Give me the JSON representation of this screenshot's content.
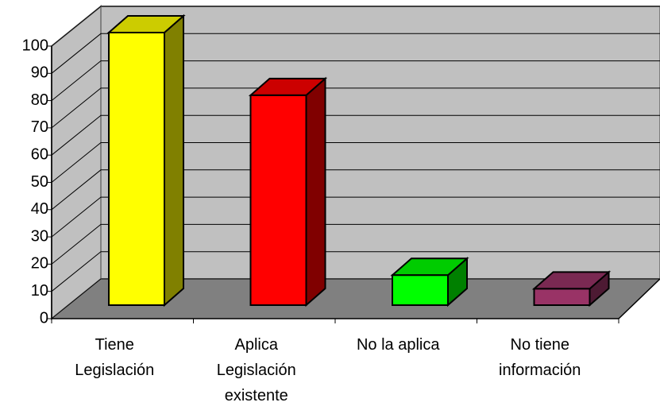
{
  "chart_data": {
    "type": "bar3d",
    "categories": [
      "Tiene Legislación",
      "Aplica Legislación existente",
      "No la aplica",
      "No tiene información"
    ],
    "values": [
      100,
      77,
      11,
      6
    ],
    "colors": [
      "#ffff00",
      "#ff0000",
      "#00ff00",
      "#993366"
    ],
    "ylim": [
      0,
      100
    ],
    "yticks": [
      0,
      10,
      20,
      30,
      40,
      50,
      60,
      70,
      80,
      90,
      100
    ],
    "grid": true
  }
}
